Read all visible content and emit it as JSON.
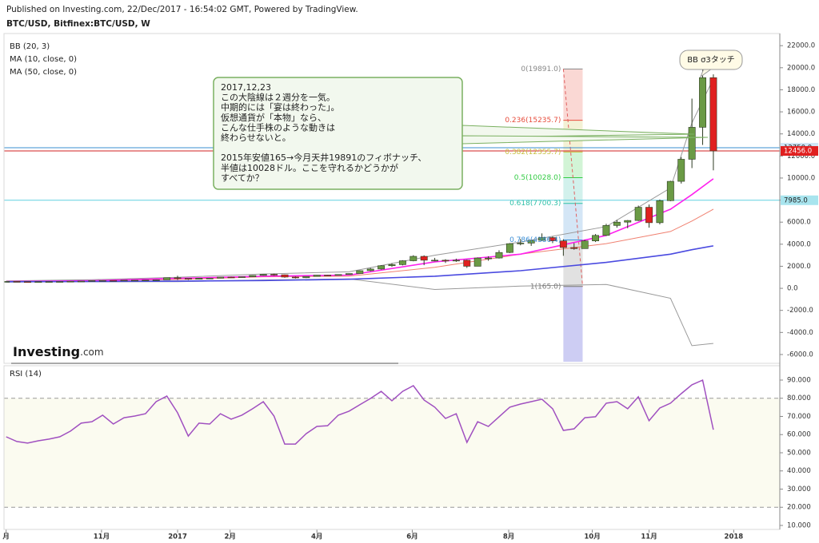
{
  "header": {
    "published": "Published on Investing.com, 22/Dec/2017 - 16:54:02 GMT, Powered by TradingView.",
    "logo": {
      "name": "Investing",
      "suffix": ".com"
    }
  },
  "chart_data": [
    {
      "type": "candlestick",
      "title": "BTC/USD, Bitfinex:BTC/USD, W",
      "up_color": "#6a9a45",
      "down_color": "#e02020",
      "edge_color": "#2d3a22",
      "x": [
        0,
        1,
        2,
        3,
        4,
        5,
        6,
        7,
        8,
        9,
        10,
        11,
        12,
        13,
        14,
        15,
        16,
        17,
        18,
        19,
        20,
        21,
        22,
        23,
        24,
        25,
        26,
        27,
        28,
        29,
        30,
        31,
        32,
        33,
        34,
        35,
        36,
        37,
        38,
        39,
        40,
        41,
        42,
        43,
        44,
        45,
        46,
        47,
        48,
        49,
        50,
        51,
        52,
        53,
        54,
        55,
        56,
        57,
        58,
        59,
        60,
        61,
        62,
        63,
        64,
        65,
        66
      ],
      "open": [
        610,
        625,
        605,
        600,
        605,
        610,
        616,
        640,
        655,
        700,
        710,
        705,
        740,
        740,
        755,
        770,
        960,
        900,
        820,
        920,
        920,
        1020,
        1000,
        1050,
        1170,
        1270,
        1230,
        1020,
        960,
        1080,
        1200,
        1180,
        1250,
        1340,
        1600,
        1750,
        2050,
        2150,
        2500,
        2900,
        2550,
        2550,
        2500,
        2550,
        2000,
        2750,
        2750,
        3250,
        4050,
        4100,
        4350,
        4600,
        4300,
        3700,
        3600,
        4300,
        4800,
        5700,
        6000,
        6150,
        7350,
        5950,
        7950,
        9700,
        11700,
        14600,
        19100
      ],
      "high": [
        630,
        630,
        610,
        612,
        615,
        620,
        645,
        660,
        710,
        720,
        720,
        745,
        750,
        760,
        780,
        980,
        1140,
        910,
        930,
        940,
        1030,
        1060,
        1060,
        1190,
        1280,
        1330,
        1250,
        1080,
        1090,
        1210,
        1220,
        1260,
        1350,
        1620,
        1850,
        2100,
        2280,
        2550,
        3000,
        2990,
        2760,
        2640,
        2690,
        2600,
        2800,
        2910,
        3450,
        4100,
        4480,
        4380,
        4980,
        4700,
        4450,
        4100,
        4400,
        4920,
        5850,
        6200,
        6190,
        7500,
        7600,
        8050,
        9750,
        11900,
        17200,
        19891,
        19400
      ],
      "low": [
        600,
        600,
        595,
        590,
        600,
        605,
        612,
        630,
        650,
        690,
        695,
        700,
        720,
        730,
        745,
        765,
        750,
        760,
        800,
        880,
        910,
        940,
        980,
        1040,
        1150,
        1140,
        960,
        890,
        930,
        1060,
        1150,
        1170,
        1240,
        1330,
        1550,
        1700,
        1950,
        2080,
        2450,
        2100,
        2450,
        2300,
        2400,
        1850,
        2000,
        2500,
        2700,
        3200,
        3900,
        3850,
        4300,
        4100,
        2950,
        3500,
        3600,
        4200,
        4750,
        5500,
        5450,
        6100,
        5500,
        5800,
        7900,
        9500,
        10900,
        13000,
        10700
      ],
      "close": [
        625,
        605,
        600,
        605,
        610,
        616,
        640,
        655,
        700,
        710,
        705,
        740,
        740,
        755,
        770,
        960,
        900,
        820,
        920,
        920,
        1020,
        1000,
        1050,
        1170,
        1270,
        1230,
        1020,
        960,
        1080,
        1200,
        1180,
        1250,
        1340,
        1600,
        1750,
        2050,
        2150,
        2500,
        2900,
        2550,
        2550,
        2500,
        2550,
        2000,
        2750,
        2750,
        3250,
        4050,
        4100,
        4350,
        4600,
        4300,
        3700,
        3600,
        4300,
        4800,
        5700,
        6000,
        6150,
        7350,
        5950,
        7950,
        9700,
        11700,
        14600,
        19100,
        12456
      ],
      "xlim": [
        -0.2,
        72.2
      ],
      "xticks": [
        {
          "value": 0,
          "label": "月"
        },
        {
          "value": 8.9,
          "label": "11月"
        },
        {
          "value": 16,
          "label": "2017"
        },
        {
          "value": 20.9,
          "label": "2月"
        },
        {
          "value": 29,
          "label": "4月"
        },
        {
          "value": 37.9,
          "label": "6月"
        },
        {
          "value": 46.9,
          "label": "8月"
        },
        {
          "value": 54.7,
          "label": "10月"
        },
        {
          "value": 60,
          "label": "11月"
        },
        {
          "value": 67.9,
          "label": "2018"
        }
      ],
      "ylim": [
        -6800,
        23100
      ],
      "yticks": [
        {
          "value": 22000,
          "label": "22000.0"
        },
        {
          "value": 20000,
          "label": "20000.0"
        },
        {
          "value": 18000,
          "label": "18000.0"
        },
        {
          "value": 16000,
          "label": "16000.0"
        },
        {
          "value": 14000,
          "label": "14000.0"
        },
        {
          "value": 12000,
          "label": "12000.0"
        },
        {
          "value": 10000,
          "label": "10000.0"
        },
        {
          "value": 8000,
          "label": "8000.0"
        },
        {
          "value": 6000,
          "label": "6000.0"
        },
        {
          "value": 4000,
          "label": "4000.0"
        },
        {
          "value": 2000,
          "label": "2000.0"
        },
        {
          "value": 0,
          "label": "0.0"
        },
        {
          "value": -2000,
          "label": "-2000.0"
        },
        {
          "value": -4000,
          "label": "-4000.0"
        },
        {
          "value": -6000,
          "label": "-6000.0"
        }
      ],
      "indicators": [
        {
          "name": "BB (20, 3)",
          "lines": [
            {
              "color": "#999999",
              "x": [
                0,
                8,
                16,
                24,
                32,
                40,
                48,
                56,
                62,
                64,
                66
              ],
              "values": [
                680,
                780,
                1000,
                1300,
                1500,
                3000,
                4200,
                5600,
                9100,
                15000,
                19000
              ]
            },
            {
              "color": "#f08070",
              "x": [
                0,
                8,
                16,
                24,
                32,
                40,
                48,
                56,
                62,
                64,
                66
              ],
              "values": [
                620,
                690,
                800,
                1050,
                1100,
                1900,
                3100,
                4050,
                5150,
                6100,
                7170
              ]
            },
            {
              "color": "#999999",
              "x": [
                0,
                8,
                16,
                24,
                32,
                40,
                48,
                56,
                62,
                64,
                66
              ],
              "values": [
                560,
                590,
                600,
                760,
                850,
                -100,
                200,
                350,
                -900,
                -5200,
                -5000
              ]
            }
          ]
        },
        {
          "name": "MA (10, close, 0)",
          "lines": [
            {
              "color": "#ff22ee",
              "x": [
                0,
                8,
                16,
                24,
                32,
                40,
                48,
                56,
                62,
                64,
                66
              ],
              "values": [
                620,
                690,
                900,
                1100,
                1200,
                2400,
                3100,
                4800,
                7170,
                8500,
                9930
              ]
            }
          ]
        },
        {
          "name": "MA (50, close, 0)",
          "lines": [
            {
              "color": "#4a4ae0",
              "x": [
                0,
                8,
                16,
                24,
                32,
                40,
                48,
                56,
                62,
                64,
                66
              ],
              "values": [
                600,
                620,
                650,
                710,
                820,
                1100,
                1600,
                2350,
                3100,
                3500,
                3850
              ]
            }
          ]
        }
      ],
      "fibonacci": {
        "x_start": 52.0,
        "x_end": 53.8,
        "below_color": "#9b9be8",
        "trend_color": "#e06060",
        "levels": [
          {
            "ratio": 0,
            "price": 19891.0,
            "label": "0(19891.0)",
            "color": "#888888"
          },
          {
            "ratio": 0.236,
            "price": 15235.7,
            "label": "0.236(15235.7)",
            "color": "#e74c3c"
          },
          {
            "ratio": 0.382,
            "price": 12355.7,
            "label": "0.382(12355.7)",
            "color": "#c8c040"
          },
          {
            "ratio": 0.5,
            "price": 10028.0,
            "label": "0.5(10028.0)",
            "color": "#33cc44"
          },
          {
            "ratio": 0.618,
            "price": 7700.3,
            "label": "0.618(7700.3)",
            "color": "#30c0a8"
          },
          {
            "ratio": 0.786,
            "price": 4386.4,
            "label": "0.786(4386.4)",
            "color": "#3d8fd6"
          },
          {
            "ratio": 1,
            "price": 165.0,
            "label": "1(165.0)",
            "color": "#777777"
          }
        ]
      },
      "price_lines": [
        {
          "value": 12750,
          "label": "12750.0",
          "color": "#3a8fd0",
          "tag": "#cfe6f6",
          "text_color": "#222222"
        },
        {
          "value": 12456,
          "label": "12456.0",
          "color": "#d02020",
          "tag": "#e02020",
          "text_color": "#ffffff"
        },
        {
          "value": 7985,
          "label": "7985.0",
          "color": "#60d0e0",
          "tag": "#a8e4ee",
          "text_color": "#222222"
        }
      ],
      "annotations": {
        "note": [
          [
            "2017,12,23",
            "この大陰線は２週分を一気。",
            "中期的には「宴は終わった」。",
            "仮想通貨が「本物」なら、",
            "こんな仕手株のような動きは",
            "終わらせないと。"
          ],
          [
            "2015年安値165→今月天井19891のフィボナッチ、",
            "半値は10028ドル。ここを守れるかどうかが",
            "すべてか？"
          ]
        ],
        "bubble": "BB σ3タッチ"
      }
    },
    {
      "type": "line",
      "title": "RSI (14)",
      "color": "#a050c0",
      "x": [
        0,
        1,
        2,
        3,
        4,
        5,
        6,
        7,
        8,
        9,
        10,
        11,
        12,
        13,
        14,
        15,
        16,
        17,
        18,
        19,
        20,
        21,
        22,
        23,
        24,
        25,
        26,
        27,
        28,
        29,
        30,
        31,
        32,
        33,
        34,
        35,
        36,
        37,
        38,
        39,
        40,
        41,
        42,
        43,
        44,
        45,
        46,
        47,
        48,
        49,
        50,
        51,
        52,
        53,
        54,
        55,
        56,
        57,
        58,
        59,
        60,
        61,
        62,
        63,
        64,
        65,
        66
      ],
      "values": [
        58.8,
        56.2,
        55.3,
        56.6,
        57.5,
        58.8,
        61.9,
        66.3,
        67.1,
        70.7,
        65.8,
        69.3,
        70.2,
        71.5,
        78.1,
        81.2,
        72.0,
        59.2,
        66.3,
        65.8,
        71.5,
        68.5,
        70.7,
        74.2,
        78.1,
        70.2,
        54.8,
        54.8,
        60.5,
        64.5,
        64.9,
        70.7,
        72.9,
        76.4,
        79.9,
        83.8,
        78.6,
        83.8,
        86.9,
        79.0,
        75.1,
        68.9,
        71.5,
        55.7,
        67.1,
        64.5,
        69.8,
        75.1,
        76.8,
        78.1,
        79.5,
        74.2,
        62.3,
        63.2,
        69.3,
        69.8,
        77.3,
        78.1,
        74.2,
        80.8,
        67.6,
        74.6,
        77.3,
        82.5,
        87.4,
        90.0,
        62.7
      ],
      "xlim": [
        -0.2,
        72.2
      ],
      "ylim": [
        7.8,
        97.9
      ],
      "yticks": [
        {
          "value": 90,
          "label": "90.000"
        },
        {
          "value": 80,
          "label": "80.000"
        },
        {
          "value": 70,
          "label": "70.000"
        },
        {
          "value": 60,
          "label": "60.000"
        },
        {
          "value": 50,
          "label": "50.000"
        },
        {
          "value": 40,
          "label": "40.000"
        },
        {
          "value": 30,
          "label": "30.000"
        },
        {
          "value": 20,
          "label": "20.000"
        },
        {
          "value": 10,
          "label": "10.000"
        }
      ],
      "levels": [
        80,
        20
      ],
      "band_color": "#fbfbf0"
    }
  ]
}
